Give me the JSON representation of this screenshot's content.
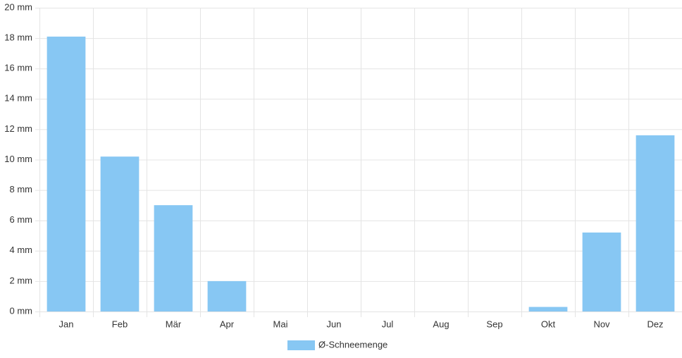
{
  "chart_data": {
    "type": "bar",
    "categories": [
      "Jan",
      "Feb",
      "Mär",
      "Apr",
      "Mai",
      "Jun",
      "Jul",
      "Aug",
      "Sep",
      "Okt",
      "Nov",
      "Dez"
    ],
    "series": [
      {
        "name": "Ø-Schneemenge",
        "color": "#87c7f3",
        "values": [
          18.1,
          10.2,
          7.0,
          2.0,
          0,
          0,
          0,
          0,
          0,
          0.3,
          5.2,
          11.6
        ]
      }
    ],
    "ylim": [
      0,
      20
    ],
    "yticks": [
      {
        "value": 0,
        "label": "0 mm"
      },
      {
        "value": 2,
        "label": "2 mm"
      },
      {
        "value": 4,
        "label": "4 mm"
      },
      {
        "value": 6,
        "label": "6 mm"
      },
      {
        "value": 8,
        "label": "8 mm"
      },
      {
        "value": 10,
        "label": "10 mm"
      },
      {
        "value": 12,
        "label": "12 mm"
      },
      {
        "value": 14,
        "label": "14 mm"
      },
      {
        "value": 16,
        "label": "16 mm"
      },
      {
        "value": 18,
        "label": "18 mm"
      },
      {
        "value": 20,
        "label": "20 mm"
      }
    ],
    "grid": true,
    "legend": "bottom"
  }
}
